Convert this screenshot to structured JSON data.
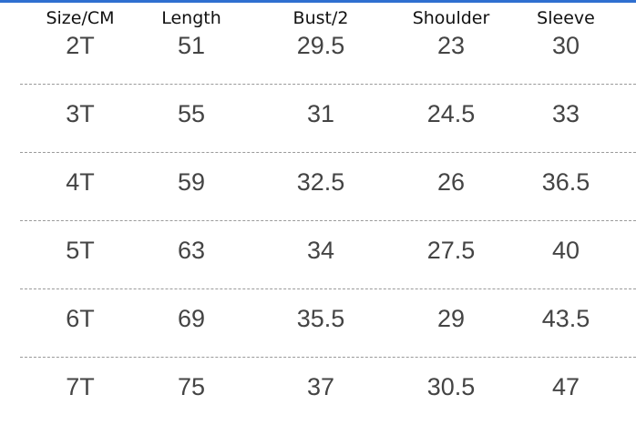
{
  "accent_color": "#2f6fd0",
  "table": {
    "headers": [
      "Size/CM",
      "Length",
      "Bust/2",
      "Shoulder",
      "Sleeve"
    ],
    "rows": [
      [
        "2T",
        "51",
        "29.5",
        "23",
        "30"
      ],
      [
        "3T",
        "55",
        "31",
        "24.5",
        "33"
      ],
      [
        "4T",
        "59",
        "32.5",
        "26",
        "36.5"
      ],
      [
        "5T",
        "63",
        "34",
        "27.5",
        "40"
      ],
      [
        "6T",
        "69",
        "35.5",
        "29",
        "43.5"
      ],
      [
        "7T",
        "75",
        "37",
        "30.5",
        "47"
      ]
    ]
  }
}
